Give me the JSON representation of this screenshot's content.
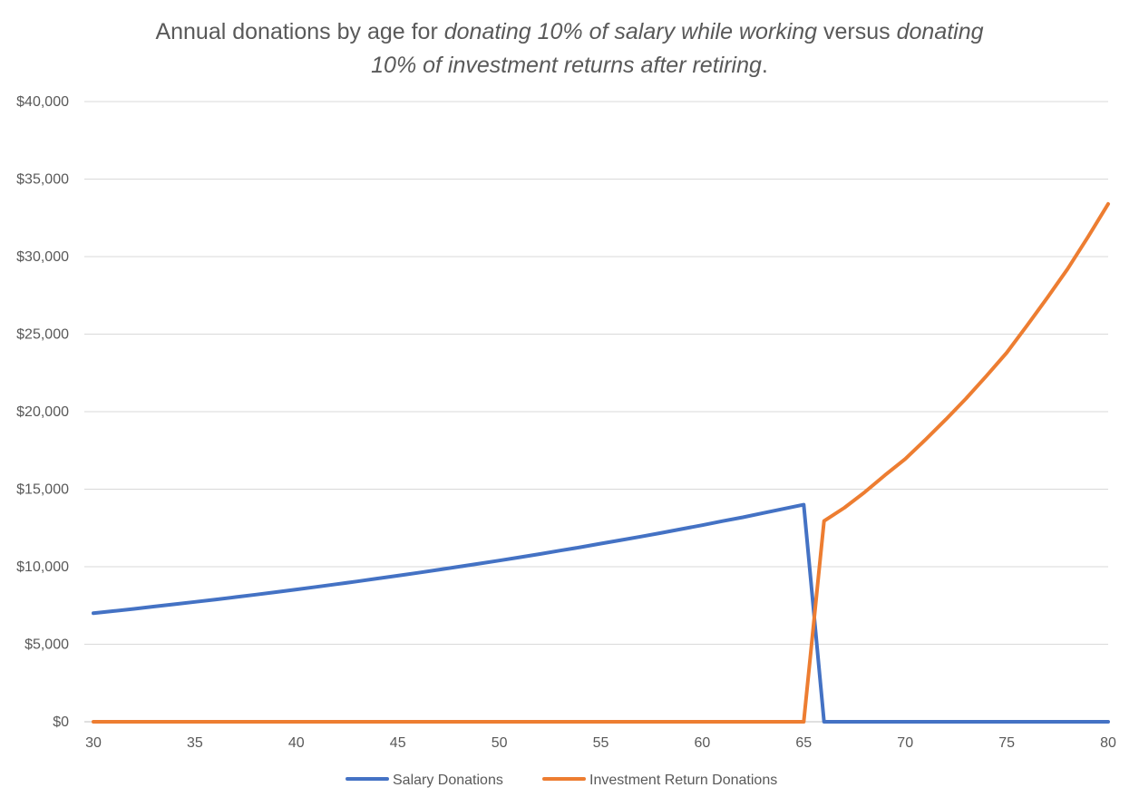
{
  "chart_data": {
    "type": "line",
    "title": {
      "parts": [
        {
          "text": "Annual donations by age for ",
          "italic": false
        },
        {
          "text": "donating 10% of salary while working",
          "italic": true
        },
        {
          "text": " versus ",
          "italic": false
        },
        {
          "text": "donating",
          "italic": true
        }
      ],
      "line2": {
        "text": "10% of investment returns after retiring",
        "italic": true
      },
      "line2_suffix": "."
    },
    "xlabel": "",
    "ylabel": "",
    "xlim": [
      30,
      80
    ],
    "ylim": [
      0,
      40000
    ],
    "x_ticks": [
      "30",
      "35",
      "40",
      "45",
      "50",
      "55",
      "60",
      "65",
      "70",
      "75",
      "80"
    ],
    "y_ticks": [
      "$0",
      "$5,000",
      "$10,000",
      "$15,000",
      "$20,000",
      "$25,000",
      "$30,000",
      "$35,000",
      "$40,000"
    ],
    "grid": "horizontal",
    "legend_position": "bottom",
    "x": [
      30,
      31,
      32,
      33,
      34,
      35,
      36,
      37,
      38,
      39,
      40,
      41,
      42,
      43,
      44,
      45,
      46,
      47,
      48,
      49,
      50,
      51,
      52,
      53,
      54,
      55,
      56,
      57,
      58,
      59,
      60,
      61,
      62,
      63,
      64,
      65,
      66,
      67,
      68,
      69,
      70,
      71,
      72,
      73,
      74,
      75,
      76,
      77,
      78,
      79,
      80
    ],
    "series": [
      {
        "name": "Salary Donations",
        "color": "#4472c4",
        "values": [
          7000,
          7140,
          7280,
          7430,
          7580,
          7730,
          7880,
          8040,
          8200,
          8360,
          8530,
          8700,
          8880,
          9050,
          9240,
          9420,
          9610,
          9800,
          10000,
          10200,
          10400,
          10610,
          10820,
          11040,
          11260,
          11490,
          11720,
          11950,
          12190,
          12430,
          12680,
          12940,
          13190,
          13460,
          13730,
          14000,
          0,
          0,
          0,
          0,
          0,
          0,
          0,
          0,
          0,
          0,
          0,
          0,
          0,
          0,
          0
        ]
      },
      {
        "name": "Investment Return Donations",
        "color": "#ed7d31",
        "values": [
          0,
          0,
          0,
          0,
          0,
          0,
          0,
          0,
          0,
          0,
          0,
          0,
          0,
          0,
          0,
          0,
          0,
          0,
          0,
          0,
          0,
          0,
          0,
          0,
          0,
          0,
          0,
          0,
          0,
          0,
          0,
          0,
          0,
          0,
          0,
          0,
          12950,
          13800,
          14800,
          15900,
          16950,
          18200,
          19500,
          20850,
          22300,
          23800,
          25550,
          27350,
          29200,
          31250,
          33400
        ]
      }
    ]
  }
}
